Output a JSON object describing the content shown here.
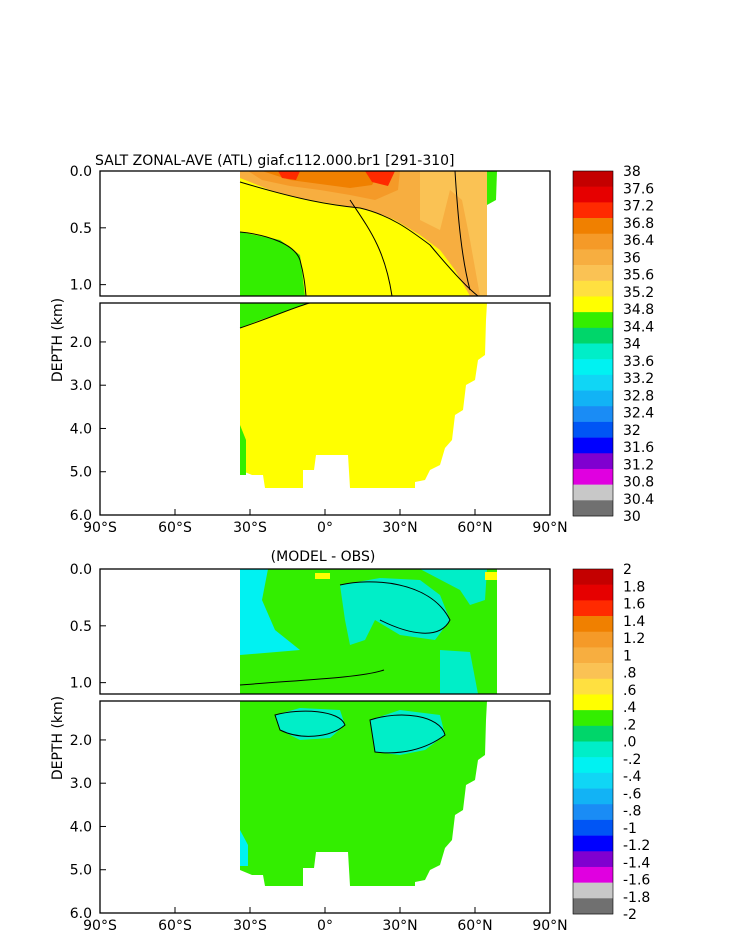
{
  "chart_data": [
    {
      "type": "heatmap",
      "title": "SALT ZONAL-AVE (ATL) giaf.c112.000.br1 [291-310]",
      "xlabel": "",
      "ylabel": "DEPTH (km)",
      "x_ticks": [
        "90°S",
        "60°S",
        "30°S",
        "0°",
        "30°N",
        "60°N",
        "90°N"
      ],
      "y_ticks_upper": [
        "0.0",
        "0.5",
        "1.0"
      ],
      "y_ticks_lower": [
        "2.0",
        "3.0",
        "4.0",
        "5.0",
        "6.0"
      ],
      "xlim": [
        -90,
        90
      ],
      "ylim_km": [
        0,
        6
      ],
      "upper_panel_range_km": [
        0,
        1.1
      ],
      "lower_panel_range_km": [
        1.1,
        6
      ],
      "colorbar_labels": [
        "38",
        "37.6",
        "37.2",
        "36.8",
        "36.4",
        "36",
        "35.6",
        "35.2",
        "34.8",
        "34.4",
        "34",
        "33.6",
        "33.2",
        "32.8",
        "32.4",
        "32",
        "31.6",
        "31.2",
        "30.8",
        "30.4",
        "30"
      ],
      "colorbar_colors": [
        "#c40000",
        "#e60000",
        "#ff2a00",
        "#f08000",
        "#f59a28",
        "#f7ae40",
        "#fac254",
        "#ffe040",
        "#ffff00",
        "#33ee00",
        "#00d66a",
        "#00eec8",
        "#00f2f2",
        "#10d6f5",
        "#12b3f5",
        "#1a8cf5",
        "#0055f5",
        "#0000ff",
        "#8000d0",
        "#e000e0",
        "#c8c8c8",
        "#707070"
      ],
      "color_min": 30,
      "color_step": 0.4
    },
    {
      "type": "heatmap",
      "title": "(MODEL - OBS)",
      "xlabel": "",
      "ylabel": "DEPTH (km)",
      "x_ticks": [
        "90°S",
        "60°S",
        "30°S",
        "0°",
        "30°N",
        "60°N",
        "90°N"
      ],
      "y_ticks_upper": [
        "0.0",
        "0.5",
        "1.0"
      ],
      "y_ticks_lower": [
        "2.0",
        "3.0",
        "4.0",
        "5.0",
        "6.0"
      ],
      "xlim": [
        -90,
        90
      ],
      "ylim_km": [
        0,
        6
      ],
      "upper_panel_range_km": [
        0,
        1.1
      ],
      "lower_panel_range_km": [
        1.1,
        6
      ],
      "colorbar_labels": [
        "2",
        "1.8",
        "1.6",
        "1.4",
        "1.2",
        "1",
        ".8",
        ".6",
        ".4",
        ".2",
        ".0",
        "-.2",
        "-.4",
        "-.6",
        "-.8",
        "-1",
        "-1.2",
        "-1.4",
        "-1.6",
        "-1.8",
        "-2"
      ],
      "colorbar_colors": [
        "#c40000",
        "#e60000",
        "#ff2a00",
        "#f08000",
        "#f59a28",
        "#f7ae40",
        "#fac254",
        "#ffe040",
        "#ffff00",
        "#33ee00",
        "#00d66a",
        "#00eec8",
        "#00f2f2",
        "#10d6f5",
        "#12b3f5",
        "#1a8cf5",
        "#0055f5",
        "#0000ff",
        "#8000d0",
        "#e000e0",
        "#c8c8c8",
        "#707070"
      ],
      "color_min": -2,
      "color_step": 0.2
    }
  ]
}
